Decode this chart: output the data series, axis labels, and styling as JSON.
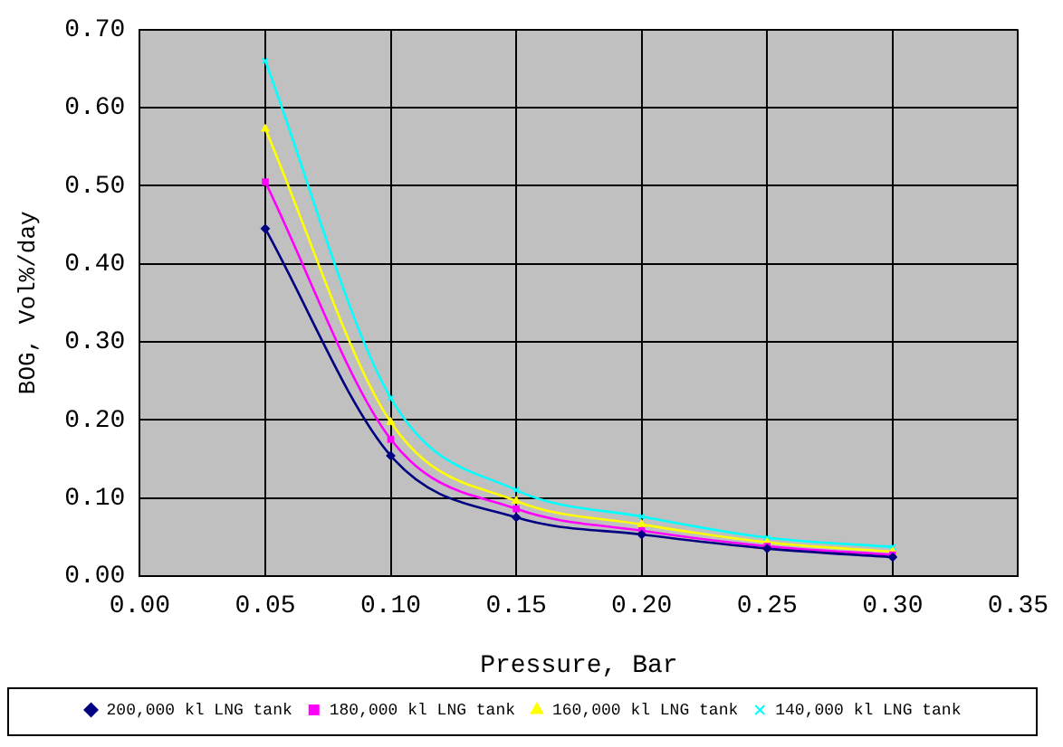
{
  "chart_data": {
    "type": "line",
    "xlabel": "Pressure, Bar",
    "ylabel": "BOG, Vol%/day",
    "x": [
      0.05,
      0.1,
      0.15,
      0.2,
      0.25,
      0.3
    ],
    "series": [
      {
        "name": "200,000 kl LNG tank",
        "color": "#000080",
        "marker": "diamond",
        "values": [
          0.445,
          0.154,
          0.075,
          0.053,
          0.035,
          0.024
        ]
      },
      {
        "name": "180,000 kl LNG tank",
        "color": "#ff00ff",
        "marker": "square",
        "values": [
          0.505,
          0.175,
          0.086,
          0.058,
          0.038,
          0.027
        ]
      },
      {
        "name": "160,000 kl LNG tank",
        "color": "#ffff00",
        "marker": "triangle",
        "values": [
          0.573,
          0.197,
          0.096,
          0.066,
          0.043,
          0.031
        ]
      },
      {
        "name": "140,000 kl LNG tank",
        "color": "#00ffff",
        "marker": "cross",
        "values": [
          0.66,
          0.228,
          0.11,
          0.076,
          0.049,
          0.037
        ]
      }
    ],
    "xlim": [
      0,
      0.35
    ],
    "xticks": [
      {
        "value": 0,
        "label": "0.00"
      },
      {
        "value": 0.05,
        "label": "0.05"
      },
      {
        "value": 0.1,
        "label": "0.10"
      },
      {
        "value": 0.15,
        "label": "0.15"
      },
      {
        "value": 0.2,
        "label": "0.20"
      },
      {
        "value": 0.25,
        "label": "0.25"
      },
      {
        "value": 0.3,
        "label": "0.30"
      },
      {
        "value": 0.35,
        "label": "0.35"
      }
    ],
    "ylim": [
      0,
      0.7
    ],
    "yticks": [
      {
        "value": 0,
        "label": "0.00"
      },
      {
        "value": 0.1,
        "label": "0.10"
      },
      {
        "value": 0.2,
        "label": "0.20"
      },
      {
        "value": 0.3,
        "label": "0.30"
      },
      {
        "value": 0.4,
        "label": "0.40"
      },
      {
        "value": 0.5,
        "label": "0.50"
      },
      {
        "value": 0.6,
        "label": "0.60"
      },
      {
        "value": 0.7,
        "label": "0.70"
      }
    ],
    "grid": true,
    "legend": "bottom",
    "line_style": "solid"
  }
}
